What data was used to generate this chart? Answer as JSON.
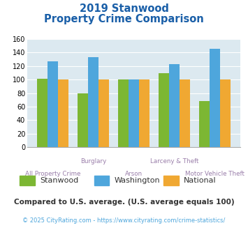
{
  "title_line1": "2019 Stanwood",
  "title_line2": "Property Crime Comparison",
  "categories": [
    "All Property Crime",
    "Burglary",
    "Arson",
    "Larceny & Theft",
    "Motor Vehicle Theft"
  ],
  "stanwood": [
    101,
    80,
    100,
    110,
    68
  ],
  "washington": [
    127,
    133,
    100,
    123,
    146
  ],
  "national": [
    100,
    100,
    100,
    100,
    100
  ],
  "colors": {
    "stanwood": "#7cb733",
    "washington": "#4ea6dc",
    "national": "#f0a832"
  },
  "ylim": [
    0,
    160
  ],
  "yticks": [
    0,
    20,
    40,
    60,
    80,
    100,
    120,
    140,
    160
  ],
  "background_color": "#dce9f0",
  "footer_text": "Compared to U.S. average. (U.S. average equals 100)",
  "copyright_text": "© 2025 CityRating.com - https://www.cityrating.com/crime-statistics/",
  "title_color": "#1a5fa8",
  "xlabel_color": "#9a7faa",
  "footer_color": "#333333",
  "copyright_color": "#4ea6dc",
  "legend_labels": [
    "Stanwood",
    "Washington",
    "National"
  ],
  "legend_text_color": "#333333"
}
